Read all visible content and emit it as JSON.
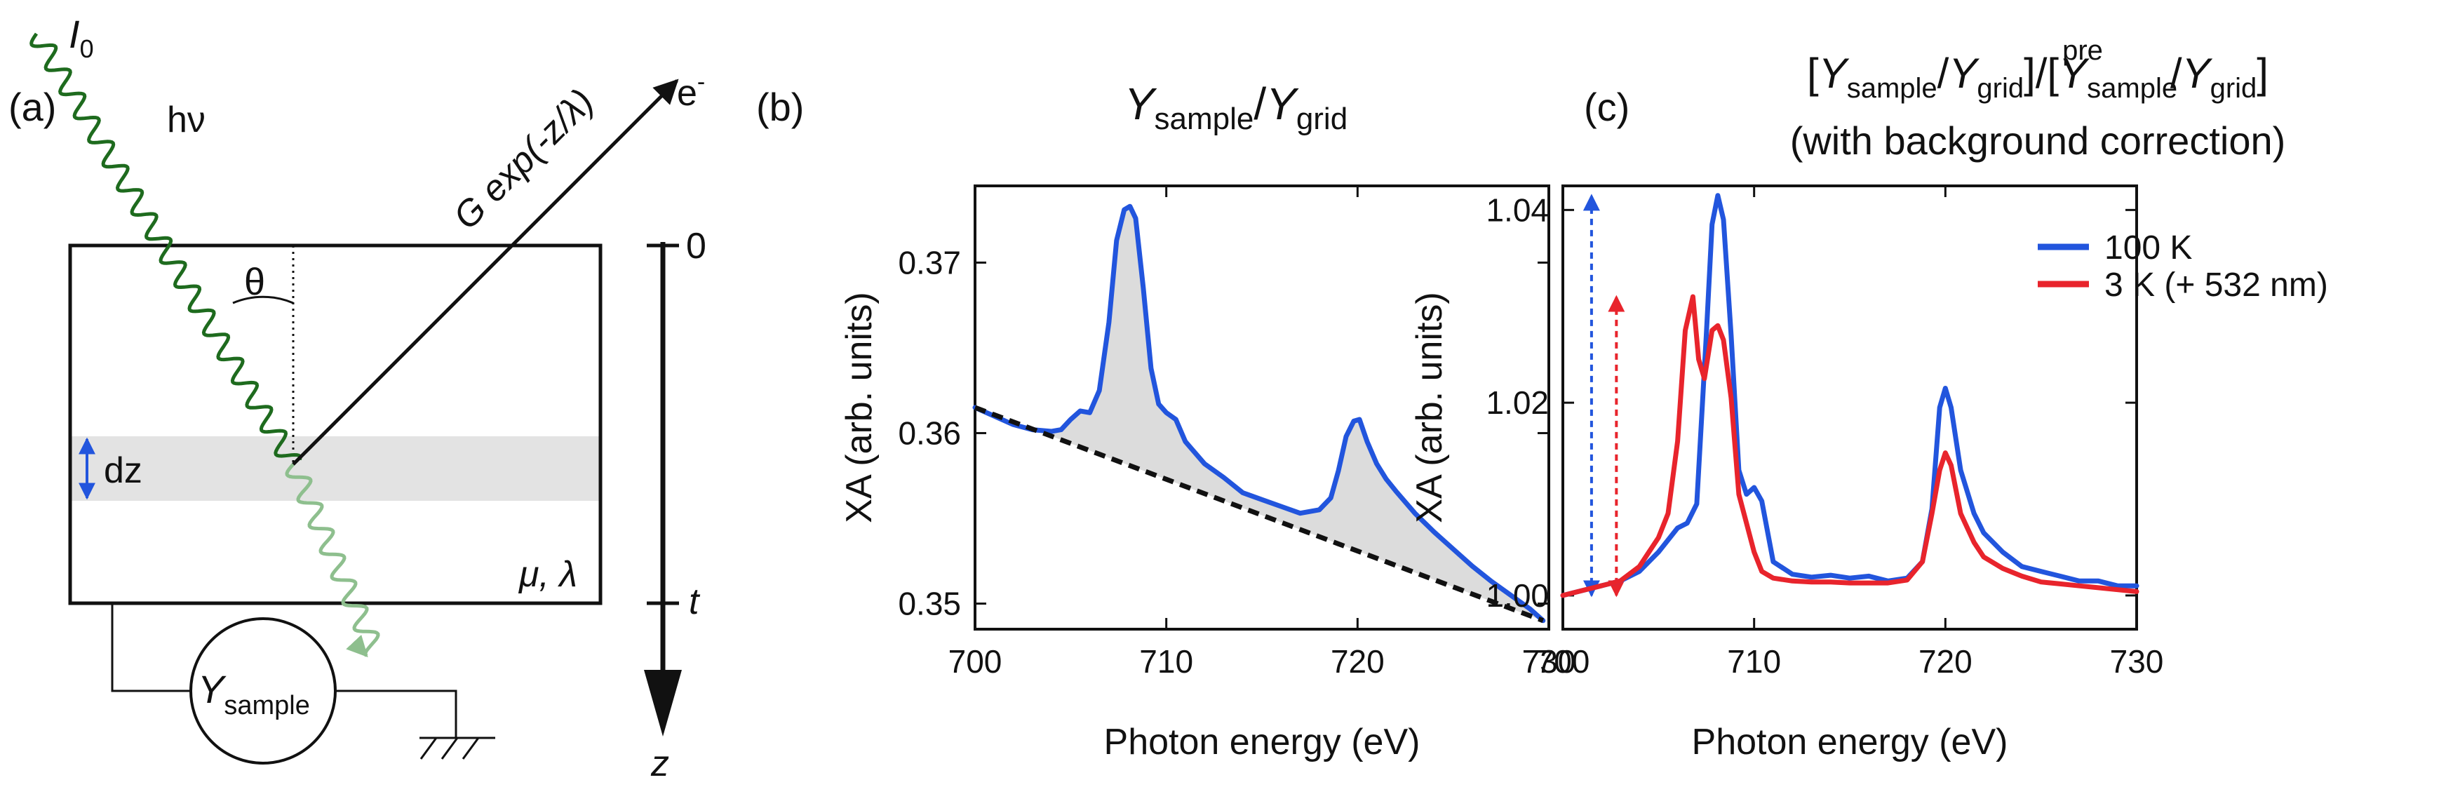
{
  "panel_a": {
    "label": "(a)",
    "intensity_symbol": "I",
    "intensity_sub": "0",
    "photon": "hν",
    "angle": "θ",
    "electron": "e",
    "electron_sup": "-",
    "decay": "G exp(-z/λ)",
    "slice": "dz",
    "material": "μ, λ",
    "depth_top": "0",
    "depth_bottom": "t",
    "depth_axis": "z",
    "meter_symbol": "Y",
    "meter_sub": "sample",
    "colors": {
      "wave": "#1e6b1e",
      "wave_faded": "#8ebf8e",
      "slab": "#e3e3e3",
      "arrow": "#2255dd"
    }
  },
  "chart_data": [
    {
      "id": "b",
      "panel_label": "(b)",
      "type": "line",
      "title": {
        "y1": "Y",
        "s1": "sample",
        "slash": "/",
        "y2": "Y",
        "s2": "grid"
      },
      "xlabel": "Photon energy (eV)",
      "ylabel": "XA (arb. units)",
      "xlim": [
        700,
        730
      ],
      "ylim": [
        0.3485,
        0.3745
      ],
      "xticks": [
        "700",
        "710",
        "720",
        "730"
      ],
      "yticks": [
        "0.35",
        "0.36",
        "0.37"
      ],
      "series": [
        {
          "name": "Ysample/Ygrid",
          "color": "#2255dd",
          "x": [
            700,
            701,
            702,
            703,
            704,
            704.5,
            705,
            705.5,
            706,
            706.5,
            707,
            707.4,
            707.8,
            708.1,
            708.4,
            708.8,
            709.2,
            709.6,
            710,
            710.5,
            711,
            712,
            713,
            714,
            715,
            716,
            717,
            718,
            718.6,
            719,
            719.4,
            719.8,
            720.1,
            720.5,
            721,
            721.5,
            722,
            723,
            724,
            725,
            726,
            727,
            728,
            729,
            729.7
          ],
          "y": [
            0.3615,
            0.361,
            0.3605,
            0.3602,
            0.3601,
            0.3602,
            0.3608,
            0.3613,
            0.3612,
            0.3625,
            0.3665,
            0.3713,
            0.3731,
            0.3733,
            0.3726,
            0.3685,
            0.3638,
            0.3617,
            0.3612,
            0.3608,
            0.3595,
            0.3582,
            0.3574,
            0.3565,
            0.3561,
            0.3557,
            0.3553,
            0.3555,
            0.3562,
            0.3578,
            0.3598,
            0.3607,
            0.3608,
            0.3595,
            0.3582,
            0.3573,
            0.3566,
            0.3553,
            0.3542,
            0.3532,
            0.3522,
            0.3513,
            0.3505,
            0.3497,
            0.349
          ]
        },
        {
          "name": "background",
          "color": "#111111",
          "style": "dashed",
          "x": [
            700,
            729.7
          ],
          "y": [
            0.3615,
            0.349
          ]
        }
      ]
    },
    {
      "id": "c",
      "panel_label": "(c)",
      "type": "line",
      "title": {
        "open": "[",
        "y1": "Y",
        "s1": "sample",
        "slash": "/",
        "y2": "Y",
        "s2": "grid",
        "mid": "]/[",
        "y3": "Y",
        "s3": "sample",
        "sup3": "pre",
        "slash2": "/",
        "y4": "Y",
        "s4": "grid",
        "close": "]",
        "line2": "(with background correction)"
      },
      "xlabel": "Photon energy (eV)",
      "ylabel": "XA (arb. units)",
      "xlim": [
        700,
        730
      ],
      "ylim": [
        0.9965,
        1.0425
      ],
      "xticks": [
        "700",
        "710",
        "720",
        "730"
      ],
      "yticks": [
        "1.00",
        "1.02",
        "1.04"
      ],
      "legend_position": "top-right",
      "series": [
        {
          "name": "100 K",
          "color": "#2255dd",
          "x": [
            700,
            701,
            702,
            703,
            704,
            705,
            706,
            706.5,
            707,
            707.5,
            707.8,
            708.1,
            708.4,
            708.8,
            709.2,
            709.6,
            710,
            710.4,
            711,
            712,
            713,
            714,
            715,
            716,
            717,
            718,
            718.8,
            719.3,
            719.7,
            720,
            720.3,
            720.8,
            721.5,
            722,
            723,
            724,
            725,
            726,
            727,
            728,
            729,
            730
          ],
          "y": [
            1.0,
            1.0005,
            1.001,
            1.0015,
            1.0025,
            1.0045,
            1.007,
            1.0075,
            1.0095,
            1.027,
            1.0385,
            1.0415,
            1.039,
            1.027,
            1.013,
            1.0105,
            1.0112,
            1.0098,
            1.0035,
            1.0022,
            1.0019,
            1.0021,
            1.0018,
            1.002,
            1.0015,
            1.0018,
            1.0035,
            1.009,
            1.0195,
            1.0215,
            1.0195,
            1.013,
            1.0085,
            1.0065,
            1.0045,
            1.003,
            1.0025,
            1.002,
            1.0015,
            1.0015,
            1.001,
            1.001
          ]
        },
        {
          "name": "3 K (+ 532 nm)",
          "color": "#e8242c",
          "x": [
            700,
            701,
            702,
            703,
            704,
            704.5,
            705,
            705.5,
            706,
            706.4,
            706.8,
            707.1,
            707.4,
            707.8,
            708.1,
            708.4,
            708.8,
            709.2,
            709.6,
            710,
            710.4,
            711,
            712,
            713,
            714,
            715,
            716,
            717,
            718,
            718.8,
            719.3,
            719.7,
            720,
            720.3,
            720.8,
            721.5,
            722,
            723,
            724,
            725,
            726,
            727,
            728,
            729,
            730
          ],
          "y": [
            1.0,
            1.0005,
            1.001,
            1.0015,
            1.003,
            1.0045,
            1.006,
            1.0085,
            1.016,
            1.0275,
            1.031,
            1.0245,
            1.0225,
            1.0275,
            1.028,
            1.0265,
            1.0205,
            1.0105,
            1.0075,
            1.0045,
            1.0025,
            1.0018,
            1.0015,
            1.0014,
            1.0014,
            1.0013,
            1.0013,
            1.0013,
            1.0016,
            1.0035,
            1.0085,
            1.013,
            1.0148,
            1.0135,
            1.0085,
            1.0055,
            1.004,
            1.0028,
            1.002,
            1.0014,
            1.0012,
            1.001,
            1.0008,
            1.0006,
            1.0004
          ]
        }
      ],
      "arrows": [
        {
          "color": "#2255dd",
          "x": 701.5,
          "from": 1.0,
          "to": 1.0415
        },
        {
          "color": "#e8242c",
          "x": 702.8,
          "from": 1.0,
          "to": 1.031
        }
      ]
    }
  ]
}
